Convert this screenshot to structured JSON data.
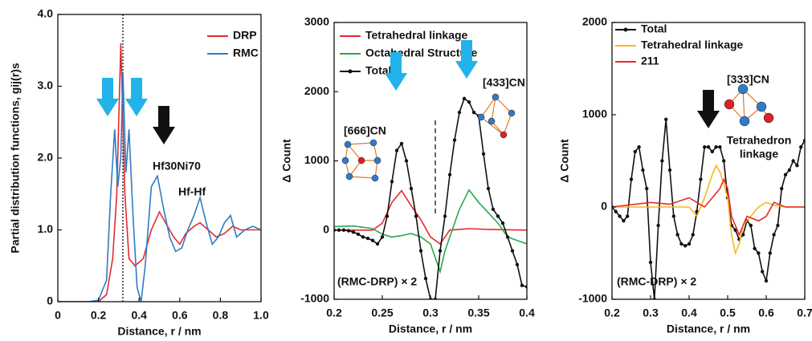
{
  "chart_data": [
    {
      "type": "line",
      "xlabel": "Distance, r / nm",
      "ylabel": "Partial distribution functions, gij(r)s",
      "xlim": [
        0,
        1
      ],
      "ylim": [
        0,
        4
      ],
      "xticks": [
        0,
        0.2,
        0.4,
        0.6,
        0.8,
        {
          "value": 1,
          "label": "1.0"
        }
      ],
      "yticks": [
        0,
        {
          "value": 1,
          "label": "1.0"
        },
        {
          "value": 2,
          "label": "2.0"
        },
        {
          "value": 3,
          "label": "3.0"
        },
        {
          "value": 4,
          "label": "4.0"
        }
      ],
      "legend": "upper right",
      "vline": 0.32,
      "annotations": [
        "Hf30Ni70",
        "Hf-Hf"
      ],
      "series": [
        {
          "name": "DRP",
          "color": "#e8292e",
          "marker": false,
          "x": [
            0,
            0.2,
            0.24,
            0.27,
            0.29,
            0.31,
            0.33,
            0.35,
            0.38,
            0.42,
            0.46,
            0.5,
            0.53,
            0.57,
            0.6,
            0.63,
            0.67,
            0.7,
            0.74,
            0.78,
            0.82,
            0.86,
            0.9,
            0.95,
            1.0
          ],
          "values": [
            0,
            0,
            0.1,
            0.6,
            1.5,
            3.6,
            1.5,
            0.6,
            0.5,
            0.6,
            1.0,
            1.25,
            1.1,
            0.9,
            0.8,
            0.95,
            1.05,
            1.1,
            1.0,
            0.9,
            0.95,
            1.05,
            1.0,
            1.0,
            1.0
          ]
        },
        {
          "name": "RMC",
          "color": "#2f7cc4",
          "marker": false,
          "x": [
            0,
            0.15,
            0.2,
            0.24,
            0.26,
            0.28,
            0.295,
            0.31,
            0.32,
            0.335,
            0.35,
            0.37,
            0.39,
            0.41,
            0.43,
            0.46,
            0.49,
            0.52,
            0.55,
            0.58,
            0.61,
            0.64,
            0.67,
            0.7,
            0.73,
            0.76,
            0.79,
            0.82,
            0.85,
            0.88,
            0.92,
            0.96,
            1.0
          ],
          "values": [
            0,
            0,
            0.02,
            0.3,
            1.5,
            2.4,
            1.6,
            2.0,
            3.2,
            1.8,
            2.4,
            1.2,
            0.2,
            0,
            0.5,
            1.6,
            1.75,
            1.3,
            0.9,
            0.7,
            0.75,
            1.0,
            1.2,
            1.45,
            1.1,
            0.8,
            0.9,
            1.1,
            1.2,
            0.9,
            1.0,
            1.05,
            1.0
          ]
        }
      ]
    },
    {
      "type": "line",
      "xlabel": "Distance, r / nm",
      "ylabel": "Δ Count",
      "xlim": [
        0.2,
        0.4
      ],
      "ylim": [
        -1000,
        3000
      ],
      "xticks": [
        0.2,
        0.25,
        0.3,
        0.35,
        0.4
      ],
      "yticks": [
        -1000,
        0,
        1000,
        2000,
        3000
      ],
      "legend": "upper left",
      "vline": 0.305,
      "annotations": [
        "[666]CN",
        "[433]CN",
        "(RMC-DRP) × 2"
      ],
      "series": [
        {
          "name": "Tetrahedral linkage",
          "color": "#e8292e",
          "marker": false,
          "x": [
            0.2,
            0.24,
            0.25,
            0.26,
            0.27,
            0.28,
            0.29,
            0.3,
            0.31,
            0.32,
            0.33,
            0.34,
            0.36,
            0.4
          ],
          "values": [
            0,
            0,
            100,
            400,
            570,
            350,
            150,
            -100,
            -200,
            0,
            10,
            20,
            10,
            0
          ]
        },
        {
          "name": "Octahedral Structure",
          "color": "#2aa84a",
          "marker": false,
          "x": [
            0.2,
            0.22,
            0.24,
            0.25,
            0.26,
            0.27,
            0.28,
            0.29,
            0.3,
            0.31,
            0.315,
            0.32,
            0.33,
            0.34,
            0.35,
            0.36,
            0.37,
            0.38,
            0.39,
            0.4
          ],
          "values": [
            50,
            60,
            20,
            -60,
            -100,
            -80,
            -50,
            -100,
            -200,
            -600,
            -300,
            -100,
            300,
            580,
            400,
            250,
            100,
            -100,
            -150,
            -200
          ]
        },
        {
          "name": "Total",
          "color": "#111111",
          "marker": true,
          "x": [
            0.2,
            0.205,
            0.21,
            0.215,
            0.22,
            0.225,
            0.23,
            0.235,
            0.24,
            0.245,
            0.25,
            0.255,
            0.26,
            0.265,
            0.27,
            0.275,
            0.28,
            0.285,
            0.29,
            0.295,
            0.3,
            0.305,
            0.31,
            0.315,
            0.32,
            0.325,
            0.33,
            0.335,
            0.34,
            0.345,
            0.35,
            0.355,
            0.36,
            0.365,
            0.37,
            0.375,
            0.38,
            0.385,
            0.39,
            0.395,
            0.4
          ],
          "values": [
            0,
            0,
            0,
            -10,
            -30,
            -60,
            -100,
            -120,
            -150,
            -200,
            -100,
            200,
            700,
            1150,
            1250,
            1000,
            600,
            200,
            -300,
            -700,
            -1000,
            -1000,
            -300,
            200,
            800,
            1300,
            1700,
            1900,
            1850,
            1700,
            1650,
            1100,
            600,
            300,
            200,
            100,
            -100,
            -300,
            -500,
            -800,
            -820
          ]
        }
      ]
    },
    {
      "type": "line",
      "xlabel": "Distance, r / nm",
      "ylabel": "Δ Count",
      "xlim": [
        0.2,
        0.7
      ],
      "ylim": [
        -1000,
        2000
      ],
      "xticks": [
        0.2,
        0.3,
        0.4,
        0.5,
        0.6,
        0.7
      ],
      "yticks": [
        -1000,
        0,
        1000,
        2000
      ],
      "legend": "upper left",
      "annotations": [
        "[333]CN",
        "Tetrahedron",
        "linkage",
        "(RMC-DRP) × 2"
      ],
      "series": [
        {
          "name": "Total",
          "color": "#111111",
          "marker": true,
          "x": [
            0.2,
            0.21,
            0.22,
            0.23,
            0.24,
            0.25,
            0.26,
            0.27,
            0.28,
            0.29,
            0.3,
            0.31,
            0.32,
            0.33,
            0.34,
            0.35,
            0.36,
            0.37,
            0.38,
            0.39,
            0.4,
            0.41,
            0.42,
            0.43,
            0.44,
            0.45,
            0.46,
            0.47,
            0.48,
            0.49,
            0.5,
            0.51,
            0.52,
            0.53,
            0.54,
            0.55,
            0.56,
            0.57,
            0.58,
            0.59,
            0.6,
            0.61,
            0.62,
            0.63,
            0.64,
            0.65,
            0.66,
            0.67,
            0.68,
            0.69,
            0.7
          ],
          "values": [
            0,
            -50,
            -100,
            -150,
            -100,
            300,
            600,
            650,
            400,
            200,
            -600,
            -1000,
            -200,
            500,
            950,
            400,
            -100,
            -300,
            -400,
            -420,
            -400,
            -300,
            -50,
            300,
            650,
            650,
            600,
            650,
            650,
            500,
            100,
            -200,
            -250,
            -350,
            -300,
            -150,
            -200,
            -450,
            -500,
            -700,
            -800,
            -500,
            -300,
            -200,
            200,
            350,
            400,
            500,
            450,
            650,
            720
          ]
        },
        {
          "name": "Tetrahedral linkage",
          "color": "#f5b820",
          "marker": false,
          "x": [
            0.2,
            0.4,
            0.42,
            0.44,
            0.46,
            0.47,
            0.48,
            0.49,
            0.5,
            0.51,
            0.52,
            0.53,
            0.54,
            0.56,
            0.58,
            0.6,
            0.62,
            0.65,
            0.7
          ],
          "values": [
            0,
            0,
            -100,
            100,
            350,
            450,
            380,
            250,
            100,
            -300,
            -500,
            -400,
            -200,
            -100,
            0,
            50,
            20,
            0,
            0
          ]
        },
        {
          "name": "211",
          "color": "#e8292e",
          "marker": false,
          "x": [
            0.2,
            0.3,
            0.35,
            0.4,
            0.44,
            0.47,
            0.48,
            0.49,
            0.5,
            0.51,
            0.52,
            0.53,
            0.55,
            0.58,
            0.6,
            0.62,
            0.65,
            0.7
          ],
          "values": [
            0,
            50,
            30,
            100,
            0,
            150,
            200,
            300,
            200,
            -100,
            -200,
            -300,
            -100,
            -150,
            -100,
            50,
            0,
            0
          ]
        }
      ]
    }
  ]
}
